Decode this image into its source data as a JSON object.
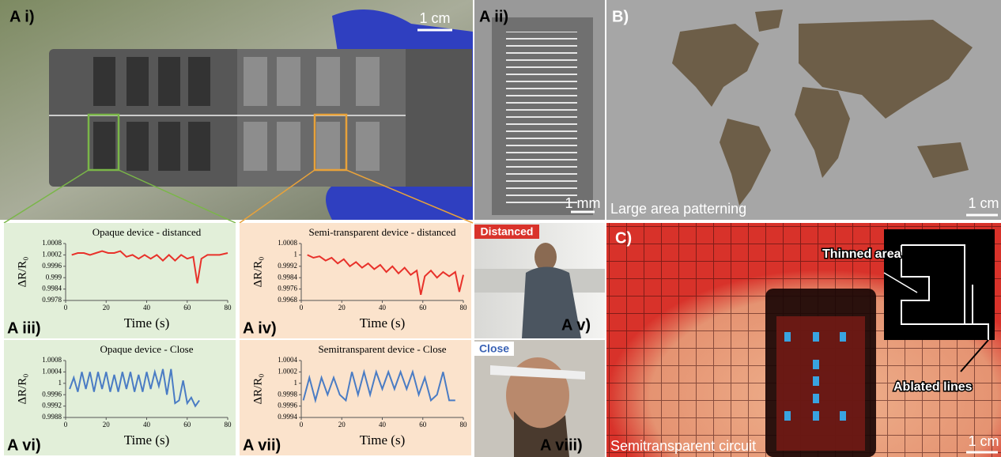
{
  "chart_data": [
    {
      "type": "line",
      "panel_label": "A iii)",
      "title": "Opaque device - distanced",
      "x_label": "Time (s)",
      "y_label": "ΔR/R₀",
      "background": "#e2efd9",
      "color": "#e8312a",
      "x": [
        3,
        6,
        9,
        12,
        15,
        18,
        21,
        24,
        27,
        30,
        33,
        36,
        39,
        42,
        45,
        48,
        51,
        54,
        57,
        60,
        63,
        64,
        65,
        67,
        70,
        73,
        76,
        80
      ],
      "values": [
        1.0002,
        1.0003,
        1.0003,
        1.0002,
        1.0003,
        1.0004,
        1.0003,
        1.0003,
        1.0004,
        1.0001,
        1.0002,
        1.0,
        1.0002,
        1.0,
        1.0002,
        0.9999,
        1.0002,
        0.9999,
        1.0002,
        1.0,
        1.0001,
        0.9994,
        0.9987,
        1.0,
        1.0002,
        1.0002,
        1.0002,
        1.0003
      ],
      "xlim": [
        0,
        80
      ],
      "xticks": [
        0,
        20,
        40,
        60,
        80
      ],
      "ylim": [
        0.9978,
        1.0008
      ],
      "yticks": [
        1.0008,
        1.0002,
        0.9996,
        0.999,
        0.9984,
        0.9978
      ]
    },
    {
      "type": "line",
      "panel_label": "A iv)",
      "title": "Semi-transparent device - distanced",
      "x_label": "Time (s)",
      "y_label": "ΔR/R₀",
      "background": "#fbe3cc",
      "color": "#e8312a",
      "x": [
        3,
        6,
        9,
        12,
        15,
        18,
        21,
        24,
        27,
        30,
        33,
        36,
        39,
        42,
        45,
        48,
        51,
        54,
        57,
        59,
        61,
        64,
        67,
        70,
        73,
        76,
        78,
        80
      ],
      "values": [
        1.0,
        0.9998,
        0.9999,
        0.9996,
        0.9998,
        0.9994,
        0.9997,
        0.9992,
        0.9995,
        0.9991,
        0.9994,
        0.999,
        0.9993,
        0.9988,
        0.9992,
        0.9987,
        0.9991,
        0.9986,
        0.9989,
        0.9972,
        0.9985,
        0.9989,
        0.9984,
        0.9988,
        0.9985,
        0.9988,
        0.9974,
        0.9986
      ],
      "xlim": [
        0,
        80
      ],
      "xticks": [
        0,
        20,
        40,
        60,
        80
      ],
      "ylim": [
        0.9968,
        1.0008
      ],
      "yticks": [
        1.0008,
        1,
        0.9992,
        0.9984,
        0.9976,
        0.9968
      ]
    },
    {
      "type": "line",
      "panel_label": "A vi)",
      "title": "Opaque device - Close",
      "x_label": "Time (s)",
      "y_label": "ΔR/R₀",
      "background": "#e2efd9",
      "color": "#4a7cc4",
      "x": [
        2,
        4,
        6,
        8,
        10,
        12,
        14,
        16,
        18,
        20,
        22,
        24,
        26,
        28,
        30,
        32,
        34,
        36,
        38,
        40,
        42,
        44,
        46,
        48,
        50,
        52,
        54,
        56,
        58,
        60,
        62,
        64,
        66
      ],
      "values": [
        0.9998,
        1.0002,
        0.9997,
        1.0004,
        0.9998,
        1.0004,
        0.9997,
        1.0004,
        0.9998,
        1.0004,
        0.9997,
        1.0003,
        0.9997,
        1.0004,
        0.9998,
        1.0004,
        0.9997,
        1.0003,
        0.9997,
        1.0004,
        0.9998,
        1.0004,
        0.9999,
        1.0005,
        0.9996,
        1.0005,
        0.9993,
        0.9994,
        1.0001,
        0.9993,
        0.9995,
        0.9992,
        0.9994
      ],
      "xlim": [
        0,
        80
      ],
      "xticks": [
        0,
        20,
        40,
        60,
        80
      ],
      "ylim": [
        0.9988,
        1.0008
      ],
      "yticks": [
        1.0008,
        1.0004,
        1,
        0.9996,
        0.9992,
        0.9988
      ]
    },
    {
      "type": "line",
      "panel_label": "A vii)",
      "title": "Semitransparent device - Close",
      "x_label": "Time (s)",
      "y_label": "ΔR/R₀",
      "background": "#fbe3cc",
      "color": "#4a7cc4",
      "x": [
        1,
        4,
        7,
        10,
        13,
        16,
        19,
        22,
        25,
        28,
        31,
        34,
        37,
        40,
        43,
        46,
        49,
        52,
        55,
        58,
        61,
        64,
        67,
        70,
        73,
        76
      ],
      "values": [
        0.9997,
        1.0001,
        0.9997,
        1.0001,
        0.9998,
        1.0001,
        0.9998,
        0.9997,
        1.0002,
        0.9998,
        1.0002,
        0.9998,
        1.0002,
        0.9999,
        1.0002,
        0.9999,
        1.0002,
        0.9999,
        1.0002,
        0.9998,
        1.0001,
        0.9997,
        0.9998,
        1.0002,
        0.9997,
        0.9997
      ],
      "xlim": [
        0,
        80
      ],
      "xticks": [
        0,
        20,
        40,
        60,
        80
      ],
      "ylim": [
        0.9994,
        1.0004
      ],
      "yticks": [
        1.0004,
        1.0002,
        1,
        0.9998,
        0.9996,
        0.9994
      ]
    }
  ],
  "panels": {
    "a_i": {
      "label": "A i)",
      "scale": "1 cm"
    },
    "a_ii": {
      "label": "A ii)",
      "scale": "1 mm"
    },
    "b": {
      "label": "B)",
      "caption": "Large area patterning",
      "scale": "1 cm"
    },
    "a_v": {
      "label": "A v)",
      "tag": "Distanced"
    },
    "a_viii": {
      "label": "A viii)",
      "tag": "Close"
    },
    "c": {
      "label": "C)",
      "caption": "Semitransparent circuit",
      "scale": "1 cm",
      "thinned": "Thinned area",
      "ablated": "Ablated lines"
    }
  }
}
